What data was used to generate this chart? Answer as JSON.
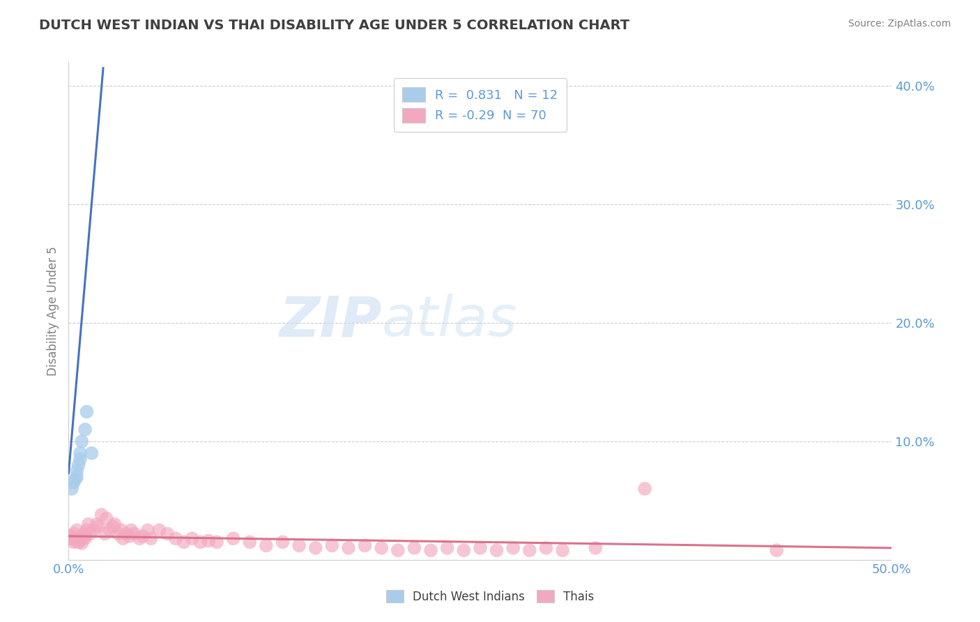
{
  "title": "DUTCH WEST INDIAN VS THAI DISABILITY AGE UNDER 5 CORRELATION CHART",
  "source": "Source: ZipAtlas.com",
  "ylabel_label": "Disability Age Under 5",
  "xmin": 0.0,
  "xmax": 0.5,
  "ymin": 0.0,
  "ymax": 0.42,
  "blue_r": 0.831,
  "blue_n": 12,
  "pink_r": -0.29,
  "pink_n": 70,
  "blue_color": "#A8CCEA",
  "blue_line_color": "#4472C4",
  "pink_color": "#F2A8BE",
  "pink_line_color": "#D9728C",
  "background_color": "#FFFFFF",
  "grid_color": "#CCCCCC",
  "title_color": "#404040",
  "axis_color": "#5B9BD5",
  "legend_label_blue": "Dutch West Indians",
  "legend_label_pink": "Thais",
  "blue_scatter_x": [
    0.002,
    0.003,
    0.004,
    0.005,
    0.005,
    0.006,
    0.007,
    0.007,
    0.008,
    0.01,
    0.011,
    0.014
  ],
  "blue_scatter_y": [
    0.06,
    0.065,
    0.068,
    0.07,
    0.075,
    0.08,
    0.085,
    0.09,
    0.1,
    0.11,
    0.125,
    0.09
  ],
  "pink_scatter_x": [
    0.001,
    0.002,
    0.003,
    0.003,
    0.004,
    0.005,
    0.005,
    0.006,
    0.007,
    0.007,
    0.008,
    0.008,
    0.009,
    0.01,
    0.01,
    0.011,
    0.012,
    0.013,
    0.015,
    0.017,
    0.018,
    0.02,
    0.022,
    0.023,
    0.025,
    0.027,
    0.028,
    0.03,
    0.032,
    0.033,
    0.035,
    0.037,
    0.038,
    0.04,
    0.043,
    0.045,
    0.048,
    0.05,
    0.055,
    0.06,
    0.065,
    0.07,
    0.075,
    0.08,
    0.085,
    0.09,
    0.1,
    0.11,
    0.12,
    0.13,
    0.14,
    0.15,
    0.16,
    0.17,
    0.18,
    0.19,
    0.2,
    0.21,
    0.22,
    0.23,
    0.24,
    0.25,
    0.26,
    0.27,
    0.28,
    0.29,
    0.3,
    0.32,
    0.35,
    0.43
  ],
  "pink_scatter_y": [
    0.02,
    0.018,
    0.015,
    0.022,
    0.016,
    0.018,
    0.025,
    0.015,
    0.018,
    0.016,
    0.014,
    0.02,
    0.022,
    0.018,
    0.02,
    0.025,
    0.03,
    0.022,
    0.025,
    0.03,
    0.028,
    0.038,
    0.022,
    0.035,
    0.025,
    0.028,
    0.03,
    0.022,
    0.025,
    0.018,
    0.022,
    0.02,
    0.025,
    0.022,
    0.018,
    0.02,
    0.025,
    0.018,
    0.025,
    0.022,
    0.018,
    0.015,
    0.018,
    0.015,
    0.016,
    0.015,
    0.018,
    0.015,
    0.012,
    0.015,
    0.012,
    0.01,
    0.012,
    0.01,
    0.012,
    0.01,
    0.008,
    0.01,
    0.008,
    0.01,
    0.008,
    0.01,
    0.008,
    0.01,
    0.008,
    0.01,
    0.008,
    0.01,
    0.06,
    0.008
  ],
  "blue_line_x0": 0.0,
  "blue_line_y0": 0.073,
  "blue_line_x1": 0.021,
  "blue_line_y1": 0.415,
  "pink_line_x0": 0.0,
  "pink_line_y0": 0.02,
  "pink_line_x1": 0.5,
  "pink_line_y1": 0.01,
  "watermark_zip": "ZIP",
  "watermark_atlas": "atlas",
  "figsize": [
    14.06,
    8.92
  ],
  "dpi": 100
}
